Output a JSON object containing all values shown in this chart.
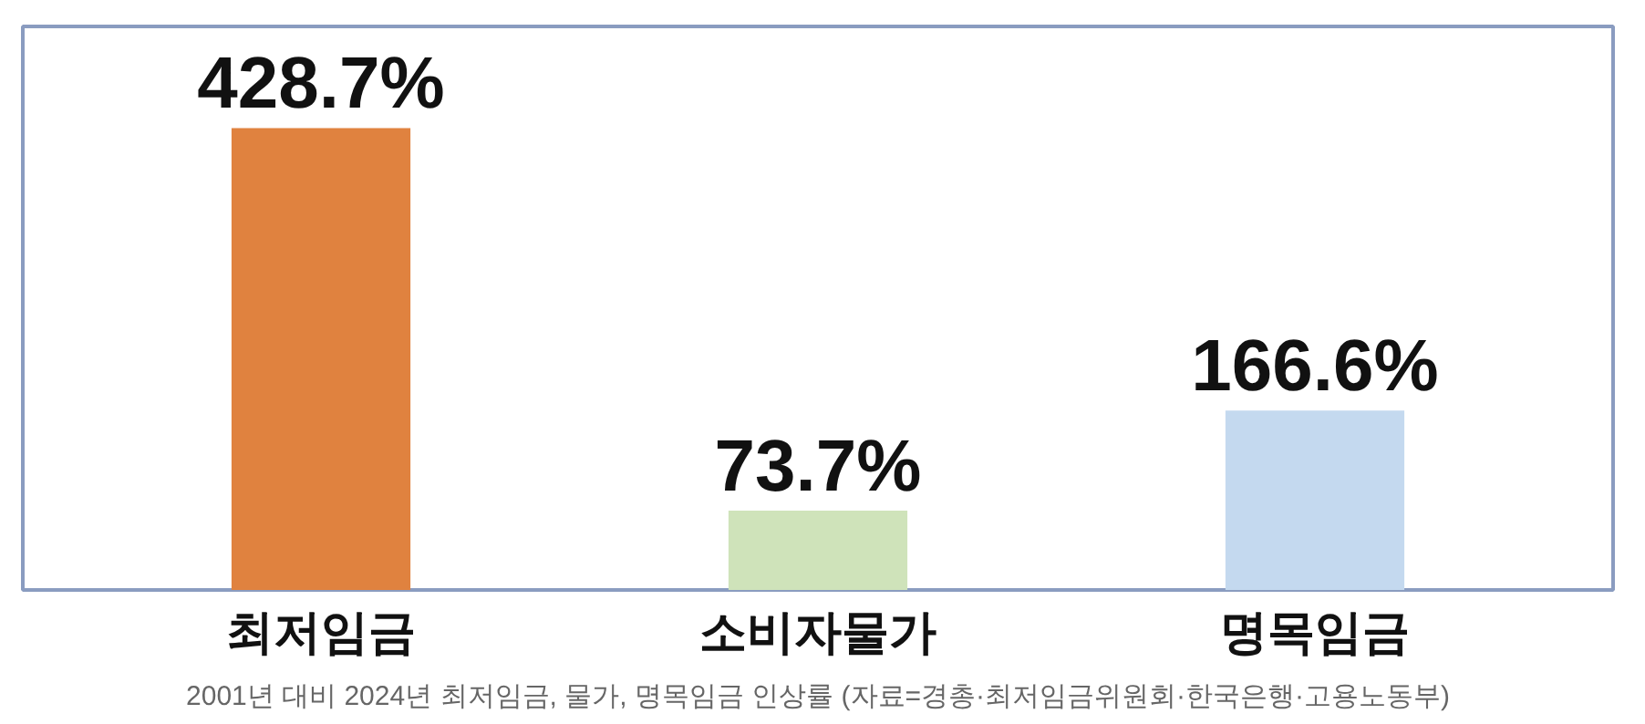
{
  "chart_data": {
    "type": "bar",
    "categories": [
      "최저임금",
      "소비자물가",
      "명목임금"
    ],
    "values": [
      428.7,
      73.7,
      166.6
    ],
    "colors": [
      "#e0823f",
      "#cfe3ba",
      "#c4d9ef"
    ],
    "value_labels": [
      "428.7%",
      "73.7%",
      "166.6%"
    ],
    "annotations": [
      "2001년 대비 2024년 최저임금, 물가, 명목임금 인상률 (자료=경총·최저임금위원회·한국은행·고용노동부)"
    ],
    "grid": false
  }
}
